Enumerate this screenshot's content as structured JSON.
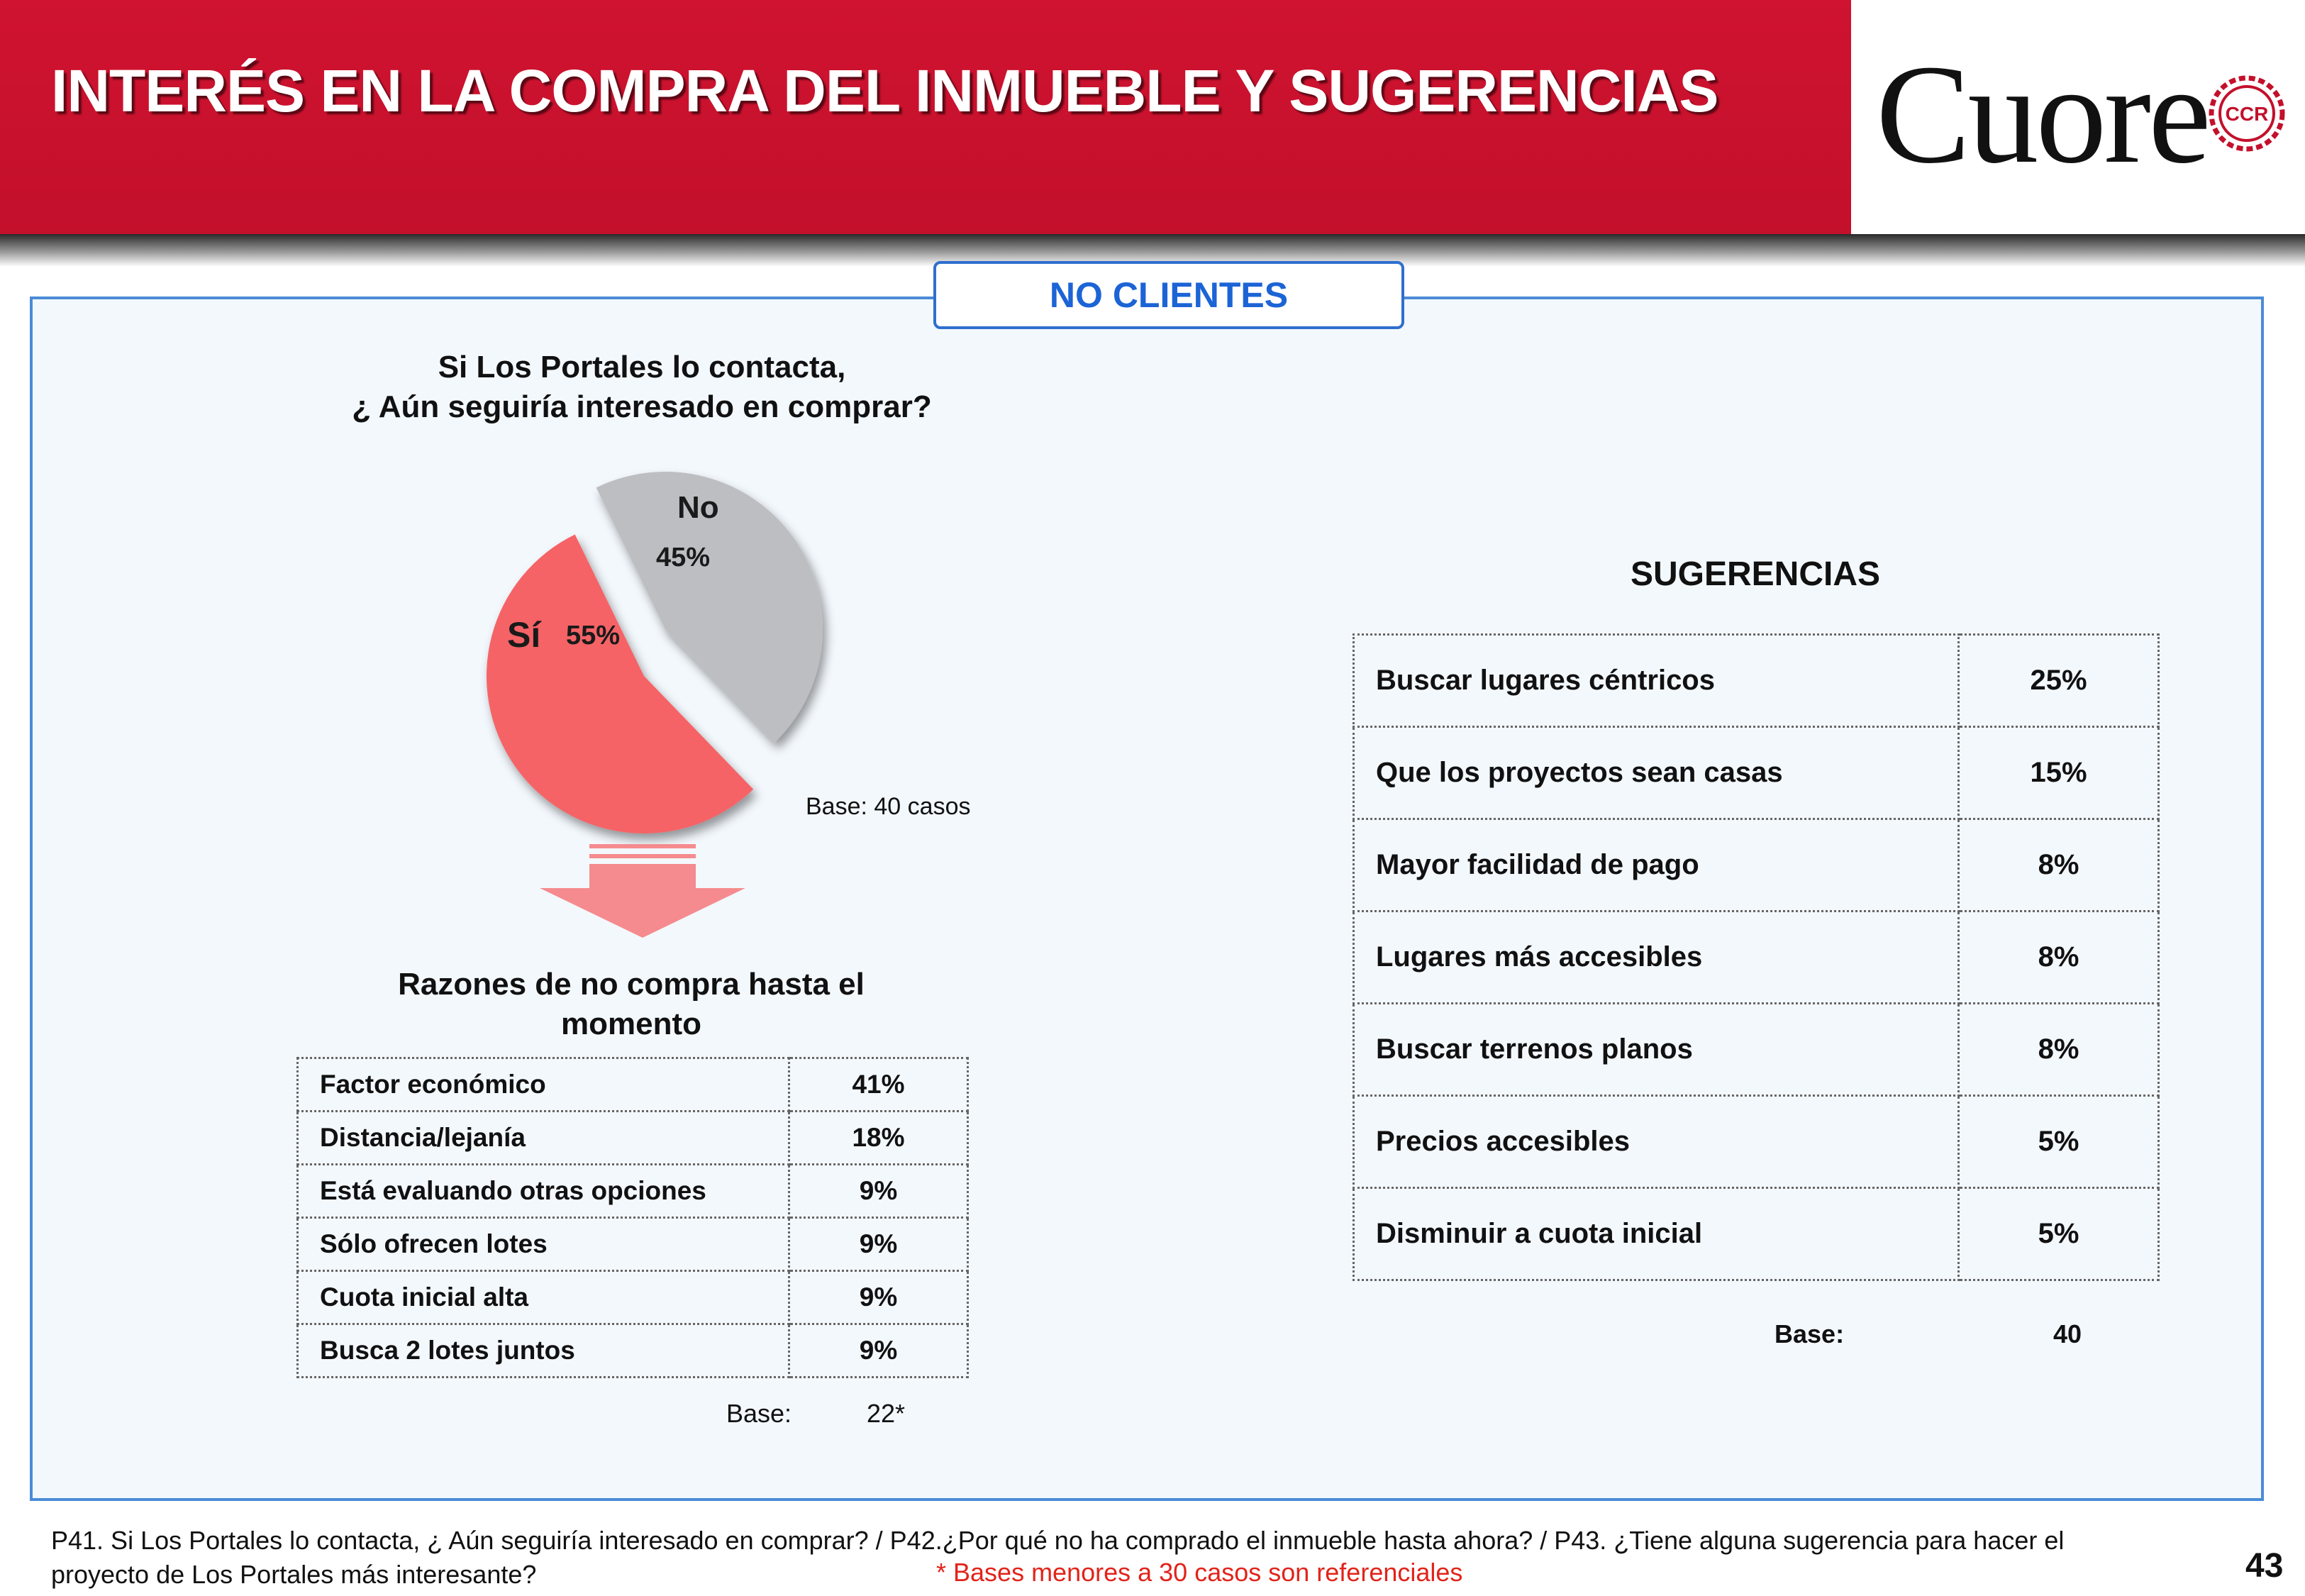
{
  "header": {
    "title": "INTERÉS EN LA COMPRA DEL INMUEBLE Y SUGERENCIAS",
    "logo_text": "Cuore",
    "logo_seal_text": "CCR",
    "bg_color": "#cf1330"
  },
  "segment_tab": "NO CLIENTES",
  "pie_question": {
    "line1": "Si  Los Portales lo contacta,",
    "line2": "¿ Aún seguiría interesado en comprar?"
  },
  "pie_base": "Base:  40 casos",
  "reasons": {
    "title_line1": "Razones  de no compra hasta el",
    "title_line2": "momento",
    "rows": [
      {
        "label": "Factor económico",
        "value": "41%"
      },
      {
        "label": "Distancia/lejanía",
        "value": "18%"
      },
      {
        "label": "Está evaluando otras opciones",
        "value": "9%"
      },
      {
        "label": "Sólo ofrecen lotes",
        "value": "9%"
      },
      {
        "label": "Cuota inicial alta",
        "value": "9%"
      },
      {
        "label": "Busca 2 lotes juntos",
        "value": "9%"
      }
    ],
    "base_label": "Base:",
    "base_value": "22*"
  },
  "suggestions": {
    "title": "SUGERENCIAS",
    "rows": [
      {
        "label": "Buscar lugares céntricos",
        "value": "25%"
      },
      {
        "label": "Que los proyectos sean casas",
        "value": "15%"
      },
      {
        "label": "Mayor facilidad de pago",
        "value": "8%"
      },
      {
        "label": "Lugares más accesibles",
        "value": "8%"
      },
      {
        "label": "Buscar terrenos planos",
        "value": "8%"
      },
      {
        "label": "Precios accesibles",
        "value": "5%"
      },
      {
        "label": "Disminuir a cuota inicial",
        "value": "5%"
      }
    ],
    "base_label": "Base:",
    "base_value": "40"
  },
  "footnote": {
    "line1": "P41. Si  Los Portales lo contacta, ¿ Aún seguiría interesado en comprar? / P42.¿Por qué no ha comprado el inmueble hasta ahora?  / P43. ¿Tiene alguna sugerencia para hacer el",
    "line2": "proyecto de Los Portales  más interesante?",
    "disclaimer": "* Bases menores a 30 casos son referenciales"
  },
  "page_number": "43",
  "chart_data": [
    {
      "type": "pie",
      "title": "Si  Los Portales lo contacta, ¿ Aún seguiría interesado en comprar?",
      "slices": [
        {
          "label": "No",
          "value": 45,
          "value_label": "45%",
          "color": "#bdbec2"
        },
        {
          "label": "Sí",
          "value": 55,
          "value_label": "55%",
          "color": "#f56466"
        }
      ]
    },
    {
      "type": "table",
      "title": "Razones  de no compra hasta el momento",
      "categories": [
        "Factor económico",
        "Distancia/lejanía",
        "Está evaluando otras opciones",
        "Sólo ofrecen lotes",
        "Cuota inicial alta",
        "Busca 2 lotes juntos"
      ],
      "values": [
        41,
        18,
        9,
        9,
        9,
        9
      ]
    },
    {
      "type": "table",
      "title": "SUGERENCIAS",
      "categories": [
        "Buscar lugares céntricos",
        "Que los proyectos sean casas",
        "Mayor facilidad de pago",
        "Lugares más accesibles",
        "Buscar terrenos planos",
        "Precios accesibles",
        "Disminuir a cuota inicial"
      ],
      "values": [
        25,
        15,
        8,
        8,
        8,
        5,
        5
      ]
    }
  ]
}
